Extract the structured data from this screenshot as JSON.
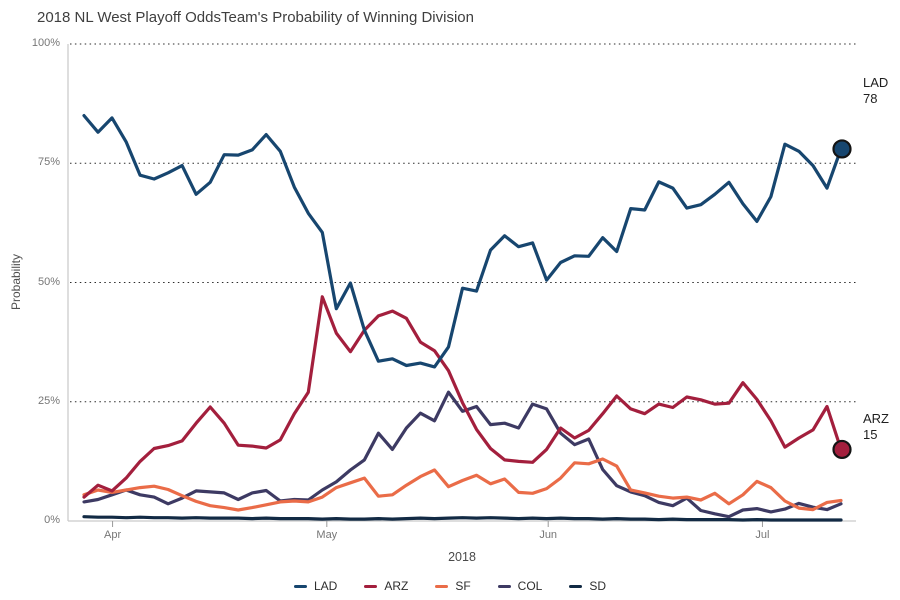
{
  "header": {
    "title": "2018 NL West Playoff Odds",
    "subtitle": "Team's Probability of Winning Division"
  },
  "chart_data": {
    "type": "line",
    "title": "2018 NL West Playoff Odds",
    "subtitle": "Team's Probability of Winning Division",
    "ylabel": "Probability",
    "x_axis_year": "2018",
    "ylim": [
      0,
      100
    ],
    "grid": "dotted-horizontal",
    "legend_position": "bottom",
    "x_start_date": "2018-03-28",
    "x_end_date": "2018-07-12",
    "x_step_days": 2,
    "x_domain_days": 106,
    "y_ticks": [
      {
        "value": 0,
        "label": "0%"
      },
      {
        "value": 25,
        "label": "25%"
      },
      {
        "value": 50,
        "label": "50%"
      },
      {
        "value": 75,
        "label": "75%"
      },
      {
        "value": 100,
        "label": "100%"
      }
    ],
    "x_ticks": [
      {
        "label": "Apr",
        "day": 4
      },
      {
        "label": "May",
        "day": 34
      },
      {
        "label": "Jun",
        "day": 65
      },
      {
        "label": "Jul",
        "day": 95
      }
    ],
    "series": [
      {
        "name": "SD",
        "color": "#122a44",
        "values": [
          0.9,
          0.8,
          0.8,
          0.7,
          0.8,
          0.7,
          0.7,
          0.6,
          0.7,
          0.6,
          0.6,
          0.6,
          0.5,
          0.6,
          0.5,
          0.5,
          0.5,
          0.4,
          0.5,
          0.4,
          0.4,
          0.5,
          0.4,
          0.5,
          0.6,
          0.5,
          0.6,
          0.7,
          0.6,
          0.7,
          0.6,
          0.5,
          0.6,
          0.5,
          0.6,
          0.5,
          0.5,
          0.4,
          0.5,
          0.4,
          0.4,
          0.3,
          0.4,
          0.3,
          0.3,
          0.3,
          0.3,
          0.2,
          0.3,
          0.2,
          0.2,
          0.2,
          0.2,
          0.2,
          0.2
        ]
      },
      {
        "name": "COL",
        "color": "#3d3a63",
        "values": [
          4,
          4.5,
          5.5,
          6.5,
          5.5,
          5,
          3.6,
          4.8,
          6.3,
          6.1,
          5.9,
          4.5,
          5.9,
          6.4,
          4.2,
          4.5,
          4.4,
          6.5,
          8.2,
          10.7,
          12.8,
          18.4,
          15,
          19.5,
          22.6,
          21,
          27,
          23,
          24,
          20.2,
          20.5,
          19.5,
          24.5,
          23.5,
          18.4,
          16,
          17.2,
          10.8,
          7.4,
          6.1,
          5.3,
          3.9,
          3.2,
          4.8,
          2.2,
          1.5,
          0.9,
          2.3,
          2.6,
          1.9,
          2.5,
          3.7,
          2.9,
          2.4,
          3.6
        ]
      },
      {
        "name": "SF",
        "color": "#ea6c48",
        "values": [
          5.5,
          6.5,
          6,
          6.5,
          7,
          7.3,
          6.6,
          5.3,
          4.1,
          3.2,
          2.8,
          2.3,
          2.8,
          3.4,
          4,
          4.2,
          4,
          5,
          7,
          8,
          9,
          5.2,
          5.5,
          7.5,
          9.3,
          10.7,
          7.2,
          8.5,
          9.6,
          7.8,
          8.8,
          6,
          5.8,
          6.8,
          9,
          12.2,
          12,
          13,
          11.5,
          6.5,
          5.9,
          5.2,
          4.8,
          5,
          4.4,
          5.8,
          3.6,
          5.5,
          8.3,
          7,
          4.2,
          2.7,
          2.4,
          3.9,
          4.3
        ]
      },
      {
        "name": "ARZ",
        "color": "#a31f3d",
        "values": [
          5,
          7.5,
          6.3,
          9,
          12.5,
          15.2,
          15.8,
          16.8,
          20.5,
          23.9,
          20.5,
          15.9,
          15.7,
          15.3,
          17,
          22.5,
          27,
          47,
          39.4,
          35.5,
          40,
          43,
          44,
          42.5,
          37.5,
          35.7,
          31.5,
          24.8,
          19.2,
          15.2,
          12.8,
          12.5,
          12.3,
          15,
          19.5,
          17.4,
          19,
          22.5,
          26.2,
          23.5,
          22.5,
          24.5,
          23.8,
          26,
          25.4,
          24.5,
          24.7,
          29,
          25.5,
          21,
          15.5,
          17.4,
          19.1,
          24,
          15
        ]
      },
      {
        "name": "LAD",
        "color": "#17466f",
        "values": [
          85,
          81.5,
          84.5,
          79.5,
          72.5,
          71.7,
          73,
          74.5,
          68.5,
          71,
          76.8,
          76.7,
          77.8,
          81,
          77.5,
          70,
          64.5,
          60.5,
          44.5,
          49.9,
          40,
          33.5,
          34,
          32.6,
          33.1,
          32.3,
          36.5,
          48.8,
          48.2,
          56.8,
          59.8,
          57.5,
          58.3,
          50.5,
          54.2,
          55.6,
          55.5,
          59.4,
          56.5,
          65.5,
          65.2,
          71.1,
          69.8,
          65.6,
          66.3,
          68.5,
          71,
          66.5,
          62.8,
          68,
          79,
          77.5,
          74.5,
          69.8,
          78
        ]
      }
    ],
    "legend_order": [
      "LAD",
      "ARZ",
      "SF",
      "COL",
      "SD"
    ],
    "annotations": [
      {
        "series": "LAD",
        "label": "LAD",
        "value": 78,
        "value_label": "78",
        "label_offset_y": -74
      },
      {
        "series": "ARZ",
        "label": "ARZ",
        "value": 15,
        "value_label": "15",
        "label_offset_y": -38
      }
    ]
  }
}
